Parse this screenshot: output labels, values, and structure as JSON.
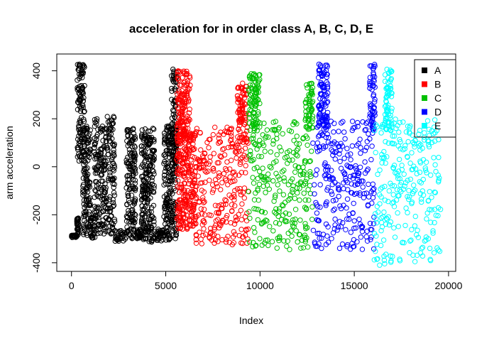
{
  "chart_data": {
    "type": "scatter",
    "title": "acceleration for in order class A, B, C, D, E",
    "xlabel": "Index",
    "ylabel": "arm acceleration",
    "xlim": [
      -780,
      20380
    ],
    "ylim": [
      -436,
      470
    ],
    "x_ticks": [
      0,
      5000,
      10000,
      15000,
      20000
    ],
    "x_tick_labels": [
      "0",
      "5000",
      "10000",
      "15000",
      "20000"
    ],
    "y_ticks": [
      -400,
      -200,
      0,
      200,
      400
    ],
    "y_tick_labels": [
      "-400",
      "-200",
      "0",
      "200",
      "400"
    ],
    "marker": "open-circle",
    "legend_position": "top-right",
    "series": [
      {
        "name": "A",
        "color": "#000000",
        "x_range": [
          0,
          5580
        ],
        "segments": [
          {
            "x": [
              0,
              280
            ],
            "y": [
              -295,
              -285
            ]
          },
          {
            "x": [
              280,
              380
            ],
            "y": [
              -290,
              -210
            ]
          },
          {
            "x": [
              300,
              700
            ],
            "y": [
              0,
              430
            ]
          },
          {
            "x": [
              600,
              1000
            ],
            "y": [
              -290,
              170
            ]
          },
          {
            "x": [
              1000,
              1300
            ],
            "y": [
              -300,
              -200
            ]
          },
          {
            "x": [
              1200,
              2300
            ],
            "y": [
              -280,
              210
            ]
          },
          {
            "x": [
              2300,
              2900
            ],
            "y": [
              -310,
              -260
            ]
          },
          {
            "x": [
              2900,
              3400
            ],
            "y": [
              -300,
              160
            ]
          },
          {
            "x": [
              3400,
              3700
            ],
            "y": [
              -300,
              -260
            ]
          },
          {
            "x": [
              3700,
              4400
            ],
            "y": [
              -320,
              160
            ]
          },
          {
            "x": [
              4400,
              4900
            ],
            "y": [
              -310,
              -260
            ]
          },
          {
            "x": [
              4900,
              5580
            ],
            "y": [
              -310,
              170
            ]
          },
          {
            "x": [
              5300,
              5600
            ],
            "y": [
              0,
              410
            ]
          }
        ]
      },
      {
        "name": "B",
        "color": "#ff0000",
        "x_range": [
          5580,
          9380
        ],
        "segments": [
          {
            "x": [
              5600,
              6300
            ],
            "y": [
              100,
              400
            ]
          },
          {
            "x": [
              5580,
              6600
            ],
            "y": [
              -260,
              150
            ]
          },
          {
            "x": [
              6600,
              9380
            ],
            "y": [
              -330,
              170
            ]
          },
          {
            "x": [
              8800,
              9300
            ],
            "y": [
              100,
              350
            ]
          }
        ]
      },
      {
        "name": "C",
        "color": "#00c000",
        "x_range": [
          9380,
          12800
        ],
        "segments": [
          {
            "x": [
              9400,
              10000
            ],
            "y": [
              150,
              390
            ]
          },
          {
            "x": [
              9380,
              12800
            ],
            "y": [
              -345,
              190
            ]
          },
          {
            "x": [
              12400,
              12800
            ],
            "y": [
              150,
              350
            ]
          }
        ]
      },
      {
        "name": "D",
        "color": "#0000ff",
        "x_range": [
          12800,
          16050
        ],
        "segments": [
          {
            "x": [
              13100,
              13600
            ],
            "y": [
              150,
              435
            ]
          },
          {
            "x": [
              12800,
              16050
            ],
            "y": [
              -345,
              190
            ]
          },
          {
            "x": [
              15800,
              16100
            ],
            "y": [
              150,
              430
            ]
          }
        ]
      },
      {
        "name": "E",
        "color": "#00ffff",
        "x_range": [
          16050,
          19600
        ],
        "segments": [
          {
            "x": [
              16600,
              17000
            ],
            "y": [
              150,
              410
            ]
          },
          {
            "x": [
              16050,
              19600
            ],
            "y": [
              -410,
              200
            ]
          }
        ]
      }
    ]
  }
}
